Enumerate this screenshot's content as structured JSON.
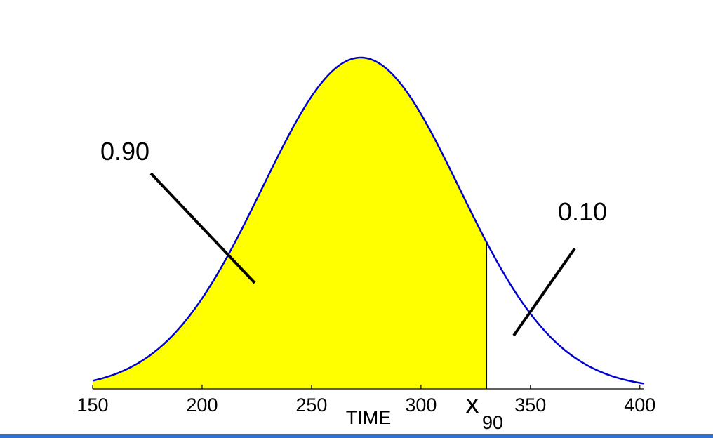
{
  "chart_data": {
    "type": "area",
    "distribution": "normal",
    "mean": 272.5,
    "std_dev": 45,
    "xlim": [
      150,
      402
    ],
    "xticks": [
      150,
      200,
      250,
      300,
      350,
      400
    ],
    "xlabel": "TIME",
    "shaded_region": {
      "from": 150,
      "to": 330,
      "probability_label": "0.90"
    },
    "tail_region": {
      "from": 330,
      "to": 402,
      "probability_label": "0.10"
    },
    "quantile_marker": {
      "value": 330,
      "label_main": "x",
      "label_sub": "90"
    },
    "colors": {
      "fill": "#ffff00",
      "curve": "#0000cc",
      "tail_fill": "#ffffff",
      "annotation": "#000000",
      "axis": "#000000"
    }
  }
}
